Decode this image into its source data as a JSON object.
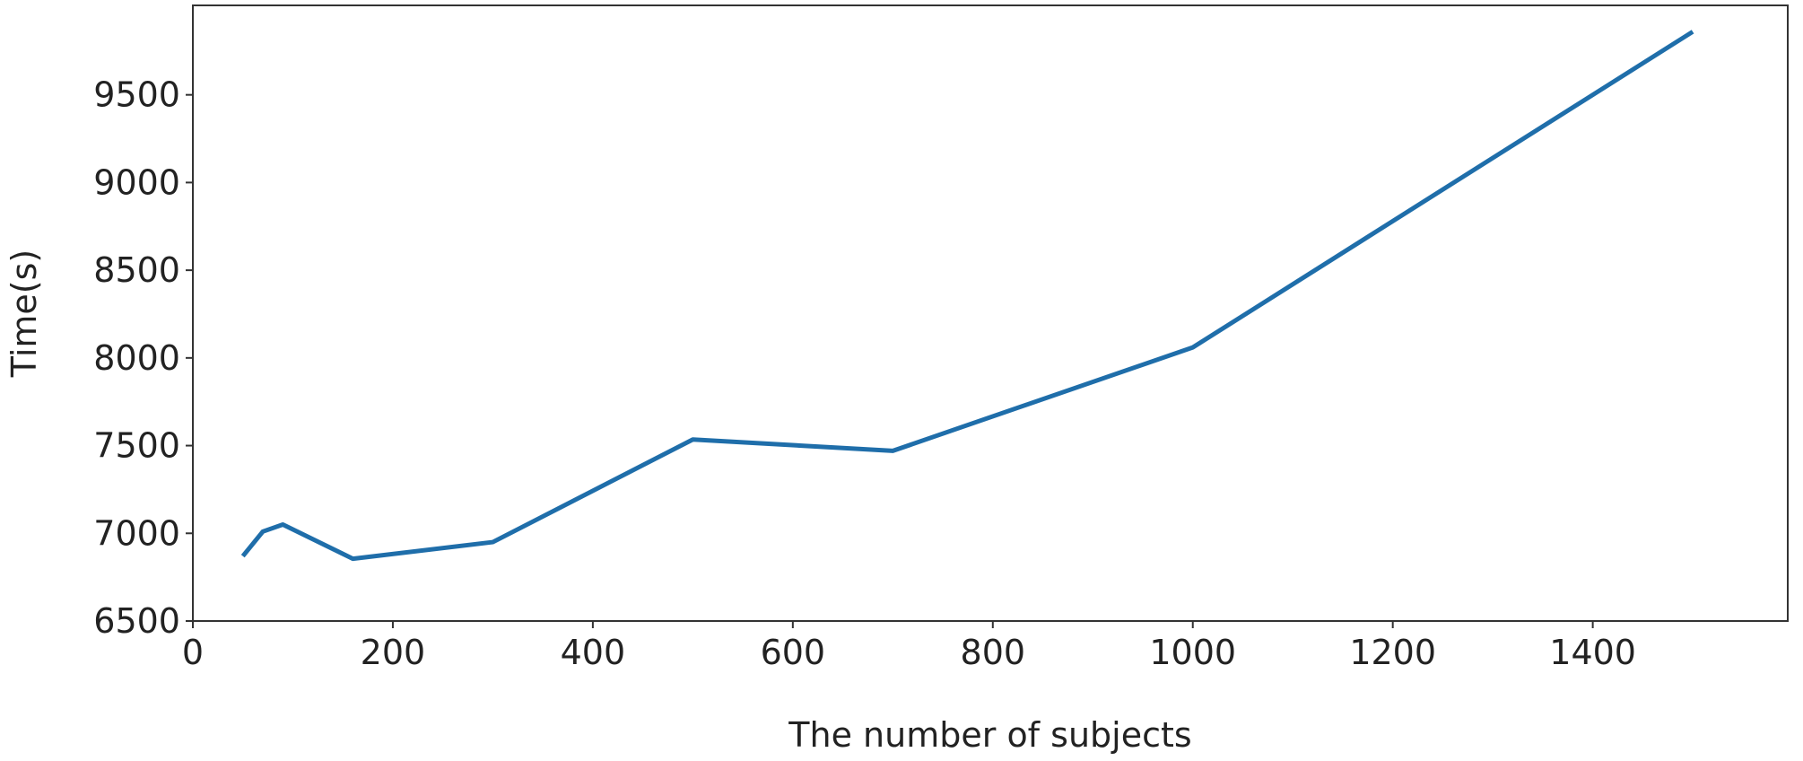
{
  "chart_data": {
    "type": "line",
    "x_label": "The number of subjects",
    "y_label": "Time(s)",
    "x": [
      50,
      70,
      90,
      160,
      300,
      500,
      700,
      1000,
      1500
    ],
    "series": [
      {
        "color": "#1f6eaa",
        "values": [
          6870,
          7010,
          7050,
          6855,
          6950,
          7535,
          7470,
          8060,
          9860
        ]
      }
    ],
    "xlim": [
      0,
      1595
    ],
    "xticks": [
      0,
      200,
      400,
      600,
      800,
      1000,
      1200,
      1400
    ],
    "ylim": [
      6500,
      10010
    ],
    "yticks": [
      6500,
      7000,
      7500,
      8000,
      8500,
      9000,
      9500
    ]
  }
}
